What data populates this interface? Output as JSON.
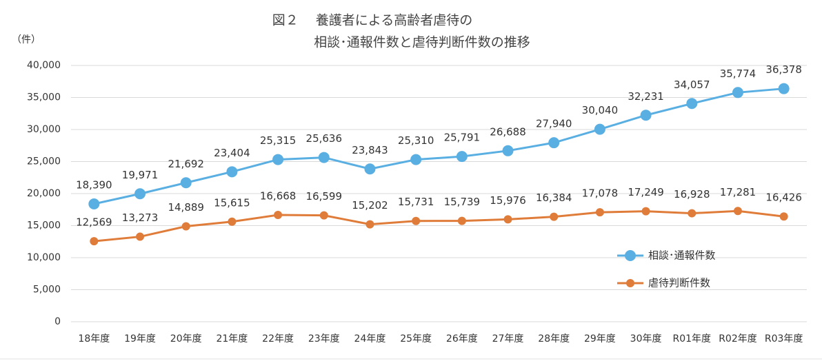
{
  "chart_data": {
    "type": "line",
    "title": [
      "図２　 養護者による高齢者虐待の",
      "相談･通報件数と虐待判断件数の推移"
    ],
    "y_label": "（件）",
    "categories": [
      "18年度",
      "19年度",
      "20年度",
      "21年度",
      "22年度",
      "23年度",
      "24年度",
      "25年度",
      "26年度",
      "27年度",
      "28年度",
      "29年度",
      "30年度",
      "R01年度",
      "R02年度",
      "R03年度"
    ],
    "series": [
      {
        "name": "相談･通報件数",
        "color": "#5aafe2",
        "values": [
          18390,
          19971,
          21692,
          23404,
          25315,
          25636,
          23843,
          25310,
          25791,
          26688,
          27940,
          30040,
          32231,
          34057,
          35774,
          36378
        ],
        "value_labels": [
          "18,390",
          "19,971",
          "21,692",
          "23,404",
          "25,315",
          "25,636",
          "23,843",
          "25,310",
          "25,791",
          "26,688",
          "27,940",
          "30,040",
          "32,231",
          "34,057",
          "35,774",
          "36,378"
        ]
      },
      {
        "name": "虐待判断件数",
        "color": "#e07c3a",
        "values": [
          12569,
          13273,
          14889,
          15615,
          16668,
          16599,
          15202,
          15731,
          15739,
          15976,
          16384,
          17078,
          17249,
          16928,
          17281,
          16426
        ],
        "value_labels": [
          "12,569",
          "13,273",
          "14,889",
          "15,615",
          "16,668",
          "16,599",
          "15,202",
          "15,731",
          "15,739",
          "15,976",
          "16,384",
          "17,078",
          "17,249",
          "16,928",
          "17,281",
          "16,426"
        ]
      }
    ],
    "ylim": [
      0,
      40000
    ],
    "yticks": [
      {
        "value": 0,
        "label": "0"
      },
      {
        "value": 5000,
        "label": "5,000"
      },
      {
        "value": 10000,
        "label": "10,000"
      },
      {
        "value": 15000,
        "label": "15,000"
      },
      {
        "value": 20000,
        "label": "20,000"
      },
      {
        "value": 25000,
        "label": "25,000"
      },
      {
        "value": 30000,
        "label": "30,000"
      },
      {
        "value": 35000,
        "label": "35,000"
      },
      {
        "value": 40000,
        "label": "40,000"
      }
    ],
    "grid": true
  }
}
